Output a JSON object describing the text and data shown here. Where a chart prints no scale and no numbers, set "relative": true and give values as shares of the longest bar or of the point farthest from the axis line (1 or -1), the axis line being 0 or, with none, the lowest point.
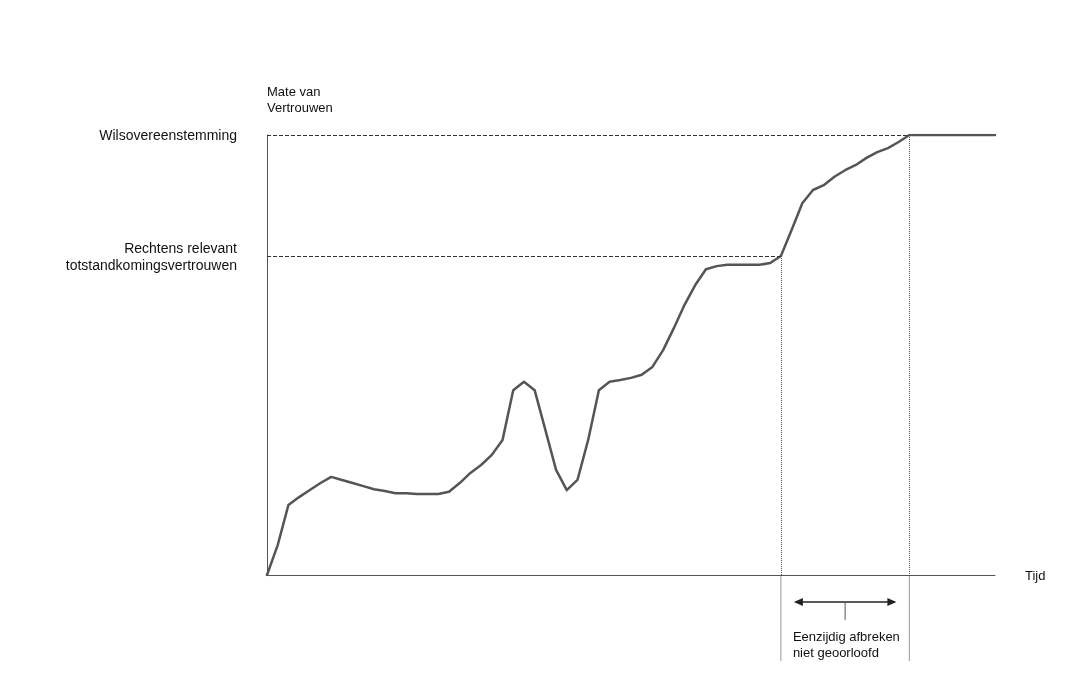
{
  "chart_data": {
    "type": "line",
    "relative": true,
    "xlabel": "Tijd",
    "ylabel": "Mate van\nVertrouwen",
    "color": "#555555",
    "marker": "none",
    "line_style": "solid",
    "grid": false,
    "categories": [
      null,
      null,
      null,
      null,
      null,
      null,
      null,
      null,
      null,
      null,
      null,
      null,
      null,
      null,
      null,
      null,
      null,
      null,
      null,
      null,
      null,
      null,
      null,
      null,
      null,
      null,
      null,
      null,
      null,
      null,
      null,
      null,
      null,
      null,
      null,
      null,
      null,
      null,
      null,
      null,
      null,
      null,
      null,
      null,
      null,
      null,
      null,
      null,
      null,
      null,
      null,
      null,
      null,
      null,
      null,
      null,
      null,
      null,
      null,
      null,
      null,
      null,
      null,
      null,
      null,
      null,
      null,
      null,
      null
    ],
    "values": [
      0,
      0.068,
      0.159,
      0.177,
      0.193,
      0.209,
      0.223,
      0.216,
      0.209,
      0.202,
      0.195,
      0.191,
      0.186,
      0.186,
      0.184,
      0.184,
      0.184,
      0.189,
      0.209,
      0.232,
      0.25,
      0.273,
      0.307,
      0.42,
      0.439,
      0.42,
      0.33,
      0.239,
      0.193,
      0.216,
      0.307,
      0.42,
      0.439,
      0.443,
      0.448,
      0.455,
      0.473,
      0.511,
      0.561,
      0.614,
      0.659,
      0.695,
      0.702,
      0.705,
      0.705,
      0.705,
      0.705,
      0.709,
      0.725,
      0.784,
      0.845,
      0.875,
      0.886,
      0.905,
      0.92,
      0.932,
      0.948,
      0.961,
      0.97,
      0.984,
      1,
      1,
      1,
      1,
      1,
      1,
      1,
      1,
      1
    ],
    "ref_lines": [
      {
        "axis": "y",
        "value": 1,
        "label": "Wilsovereenstemming",
        "line_style": "dashed"
      },
      {
        "axis": "y",
        "value": 0.725,
        "label": "Rechtens relevant\ntotstandkomingsvertrouwen",
        "line_style": "dashed"
      }
    ],
    "annotations": [
      "Eenzijdig afbreken\nniet geoorloofd"
    ]
  }
}
